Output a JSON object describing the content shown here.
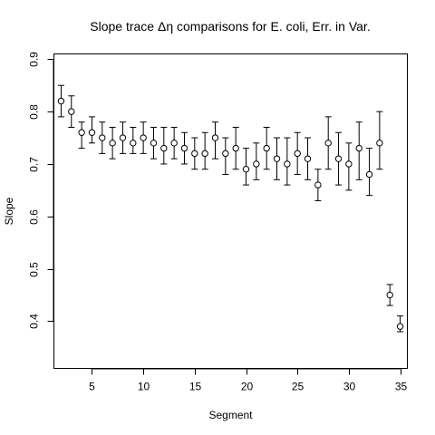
{
  "chart_data": {
    "type": "scatter",
    "title": "Slope trace Δη comparisons for E. coli, Err. in Var.",
    "xlabel": "Segment",
    "ylabel": "Slope",
    "xlim": [
      1.3,
      35.7
    ],
    "ylim": [
      0.31,
      0.91
    ],
    "xticks": [
      5,
      10,
      15,
      20,
      25,
      30,
      35
    ],
    "yticks": [
      0.4,
      0.5,
      0.6,
      0.7,
      0.8,
      0.9
    ],
    "xtick_labels": [
      "5",
      "10",
      "15",
      "20",
      "25",
      "30",
      "35"
    ],
    "ytick_labels": [
      "0.4",
      "0.5",
      "0.6",
      "0.7",
      "0.8",
      "0.9"
    ],
    "grid": false,
    "legend": false,
    "marker": "open-circle",
    "error_bars": true,
    "points": [
      {
        "x": 2,
        "y": 0.82,
        "low": 0.79,
        "high": 0.85
      },
      {
        "x": 3,
        "y": 0.8,
        "low": 0.77,
        "high": 0.83
      },
      {
        "x": 4,
        "y": 0.76,
        "low": 0.73,
        "high": 0.78
      },
      {
        "x": 5,
        "y": 0.76,
        "low": 0.74,
        "high": 0.79
      },
      {
        "x": 6,
        "y": 0.75,
        "low": 0.72,
        "high": 0.78
      },
      {
        "x": 7,
        "y": 0.74,
        "low": 0.71,
        "high": 0.77
      },
      {
        "x": 8,
        "y": 0.75,
        "low": 0.72,
        "high": 0.78
      },
      {
        "x": 9,
        "y": 0.74,
        "low": 0.72,
        "high": 0.77
      },
      {
        "x": 10,
        "y": 0.75,
        "low": 0.72,
        "high": 0.78
      },
      {
        "x": 11,
        "y": 0.74,
        "low": 0.71,
        "high": 0.77
      },
      {
        "x": 12,
        "y": 0.73,
        "low": 0.7,
        "high": 0.77
      },
      {
        "x": 13,
        "y": 0.74,
        "low": 0.71,
        "high": 0.77
      },
      {
        "x": 14,
        "y": 0.73,
        "low": 0.7,
        "high": 0.76
      },
      {
        "x": 15,
        "y": 0.72,
        "low": 0.69,
        "high": 0.75
      },
      {
        "x": 16,
        "y": 0.72,
        "low": 0.69,
        "high": 0.76
      },
      {
        "x": 17,
        "y": 0.75,
        "low": 0.71,
        "high": 0.78
      },
      {
        "x": 18,
        "y": 0.72,
        "low": 0.68,
        "high": 0.75
      },
      {
        "x": 19,
        "y": 0.73,
        "low": 0.69,
        "high": 0.77
      },
      {
        "x": 20,
        "y": 0.69,
        "low": 0.66,
        "high": 0.73
      },
      {
        "x": 21,
        "y": 0.7,
        "low": 0.67,
        "high": 0.74
      },
      {
        "x": 22,
        "y": 0.73,
        "low": 0.69,
        "high": 0.77
      },
      {
        "x": 23,
        "y": 0.71,
        "low": 0.67,
        "high": 0.75
      },
      {
        "x": 24,
        "y": 0.7,
        "low": 0.66,
        "high": 0.75
      },
      {
        "x": 25,
        "y": 0.72,
        "low": 0.68,
        "high": 0.76
      },
      {
        "x": 26,
        "y": 0.71,
        "low": 0.67,
        "high": 0.75
      },
      {
        "x": 27,
        "y": 0.66,
        "low": 0.63,
        "high": 0.69
      },
      {
        "x": 28,
        "y": 0.74,
        "low": 0.69,
        "high": 0.79
      },
      {
        "x": 29,
        "y": 0.71,
        "low": 0.66,
        "high": 0.76
      },
      {
        "x": 30,
        "y": 0.7,
        "low": 0.65,
        "high": 0.74
      },
      {
        "x": 31,
        "y": 0.73,
        "low": 0.67,
        "high": 0.78
      },
      {
        "x": 32,
        "y": 0.68,
        "low": 0.64,
        "high": 0.73
      },
      {
        "x": 33,
        "y": 0.74,
        "low": 0.69,
        "high": 0.8
      },
      {
        "x": 34,
        "y": 0.45,
        "low": 0.43,
        "high": 0.47
      },
      {
        "x": 35,
        "y": 0.39,
        "low": 0.38,
        "high": 0.41
      }
    ]
  }
}
